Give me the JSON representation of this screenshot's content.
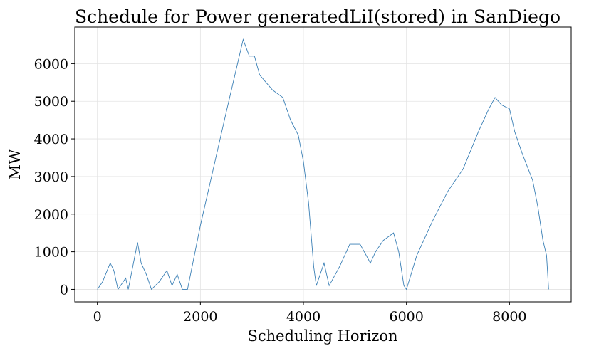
{
  "chart_data": {
    "type": "line",
    "title": "Schedule for Power generatedLiI(stored) in SanDiego",
    "x_label": "Scheduling Horizon",
    "y_label": "MW",
    "x": [
      0,
      100,
      250,
      320,
      400,
      550,
      600,
      780,
      850,
      950,
      1050,
      1200,
      1350,
      1450,
      1550,
      1650,
      1750,
      2000,
      2500,
      2830,
      2950,
      3050,
      3150,
      3400,
      3600,
      3750,
      3900,
      4000,
      4100,
      4200,
      4250,
      4400,
      4500,
      4700,
      4900,
      5100,
      5300,
      5400,
      5550,
      5750,
      5850,
      5950,
      6000,
      6200,
      6500,
      6800,
      7100,
      7400,
      7600,
      7720,
      7850,
      8000,
      8100,
      8250,
      8450,
      8550,
      8650,
      8720,
      8760
    ],
    "series": [
      {
        "name": "Power generatedLiI(stored)",
        "color": "#3a7fb5",
        "values": [
          0,
          200,
          700,
          500,
          0,
          300,
          0,
          1250,
          700,
          400,
          0,
          200,
          500,
          100,
          400,
          0,
          0,
          1700,
          4700,
          6640,
          6200,
          6200,
          5700,
          5300,
          5100,
          4500,
          4100,
          3400,
          2300,
          600,
          100,
          700,
          100,
          600,
          1200,
          1200,
          700,
          1000,
          1300,
          1500,
          1000,
          100,
          0,
          900,
          1800,
          2600,
          3200,
          4200,
          4800,
          5100,
          4900,
          4800,
          4200,
          3600,
          2900,
          2200,
          1300,
          900,
          0
        ]
      }
    ],
    "xlim": [
      -438,
      9198
    ],
    "ylim": [
      -332,
      6972
    ],
    "xticks": [
      0,
      2000,
      4000,
      6000,
      8000
    ],
    "yticks": [
      0,
      1000,
      2000,
      3000,
      4000,
      5000,
      6000
    ],
    "grid": true
  }
}
